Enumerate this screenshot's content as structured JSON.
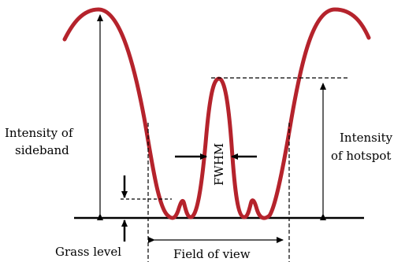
{
  "labels": {
    "intensity_sideband_line1": "Intensity of",
    "intensity_sideband_line2": "sideband",
    "intensity_hotspot_line1": "Intensity",
    "intensity_hotspot_line2": "of hotspot",
    "fwhm": "FWHM",
    "grass_level": "Grass level",
    "field_of_view": "Field of view"
  },
  "colors": {
    "curve": "#b5232c",
    "lines": "#000000",
    "background": "#ffffff"
  }
}
